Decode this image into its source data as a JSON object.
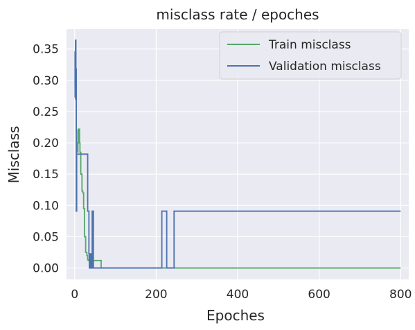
{
  "chart_data": {
    "type": "line",
    "title": "misclass rate / epoches",
    "xlabel": "Epoches",
    "ylabel": "Misclass",
    "xlim": [
      -20,
      820
    ],
    "ylim": [
      -0.0182,
      0.3818
    ],
    "xticks": [
      0,
      200,
      400,
      600,
      800
    ],
    "yticks": [
      0.0,
      0.05,
      0.1,
      0.15,
      0.2,
      0.25,
      0.3,
      0.35
    ],
    "ytick_labels": [
      "0.00",
      "0.05",
      "0.10",
      "0.15",
      "0.20",
      "0.25",
      "0.30",
      "0.35"
    ],
    "grid": true,
    "legend_position": "top-right",
    "colors": {
      "background": "#eaeaf2",
      "grid": "#ffffff",
      "train": "#55a868",
      "validation": "#4c72b0"
    },
    "series": [
      {
        "name": "Train misclass",
        "color": "#55a868",
        "x": [
          0,
          1,
          1,
          2,
          2,
          3,
          3,
          4,
          4,
          5,
          5,
          6,
          6,
          7,
          7,
          8,
          8,
          9,
          9,
          10,
          10,
          11,
          11,
          12,
          12,
          13,
          13,
          15,
          15,
          18,
          18,
          20,
          20,
          22,
          22,
          24,
          24,
          27,
          27,
          30,
          30,
          32,
          32,
          34,
          34,
          36,
          36,
          38,
          38,
          40,
          40,
          45,
          45,
          50,
          50,
          55,
          55,
          60,
          60,
          65,
          65,
          800
        ],
        "y": [
          0.29,
          0.29,
          0.345,
          0.345,
          0.27,
          0.27,
          0.3,
          0.3,
          0.22,
          0.22,
          0.19,
          0.19,
          0.2,
          0.2,
          0.185,
          0.185,
          0.2,
          0.2,
          0.222,
          0.222,
          0.205,
          0.205,
          0.222,
          0.222,
          0.2,
          0.2,
          0.185,
          0.185,
          0.15,
          0.15,
          0.123,
          0.123,
          0.12,
          0.12,
          0.095,
          0.095,
          0.05,
          0.05,
          0.025,
          0.025,
          0.02,
          0.02,
          0.013,
          0.013,
          0.012,
          0.012,
          0.012,
          0.012,
          0.012,
          0.012,
          0.012,
          0.012,
          0.012,
          0.012,
          0.012,
          0.012,
          0.012,
          0.012,
          0.012,
          0.012,
          0.0,
          0.0
        ]
      },
      {
        "name": "Validation misclass",
        "color": "#4c72b0",
        "x": [
          0,
          1,
          1,
          2,
          2,
          3,
          3,
          4,
          4,
          5,
          5,
          6,
          6,
          32,
          32,
          35,
          35,
          36,
          36,
          38,
          38,
          40,
          40,
          43,
          43,
          46,
          46,
          48,
          48,
          214,
          214,
          226,
          226,
          229,
          229,
          244,
          244,
          246,
          246,
          800
        ],
        "y": [
          0.273,
          0.273,
          0.345,
          0.345,
          0.364,
          0.364,
          0.318,
          0.318,
          0.0909,
          0.0909,
          0.182,
          0.182,
          0.182,
          0.182,
          0.0909,
          0.0909,
          0.0227,
          0.0227,
          0.0,
          0.0,
          0.0227,
          0.0227,
          0.0,
          0.0,
          0.0909,
          0.0909,
          0.0,
          0.0,
          0.0,
          0.0,
          0.0909,
          0.0909,
          0.0,
          0.0,
          0.0,
          0.0,
          0.0909,
          0.0909,
          0.0909,
          0.0909
        ]
      }
    ]
  }
}
